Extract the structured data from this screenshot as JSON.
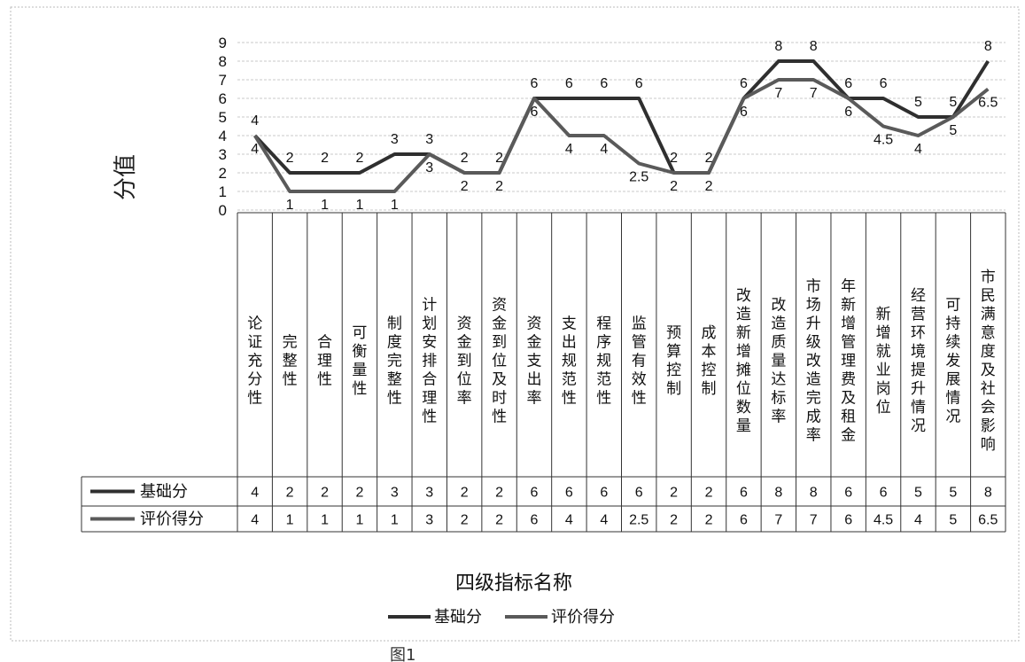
{
  "chart_data": {
    "type": "line",
    "ylabel": "分值",
    "xlabel": "四级指标名称",
    "ylim": [
      0,
      9
    ],
    "yticks": [
      "0",
      "1",
      "2",
      "3",
      "4",
      "5",
      "6",
      "7",
      "8",
      "9"
    ],
    "grid": true,
    "categories": [
      "论证充分性",
      "完整性",
      "合理性",
      "可衡量性",
      "制度完整性",
      "计划安排合理性",
      "资金到位率",
      "资金到位及时性",
      "资金支出率",
      "支出规范性",
      "程序规范性",
      "监管有效性",
      "预算控制",
      "成本控制",
      "改造新增摊位数量",
      "改造质量达标率",
      "市场升级改造完成率",
      "年新增管理费及租金",
      "新增就业岗位",
      "经营环境提升情况",
      "可持续发展情况",
      "市民满意度及社会影响"
    ],
    "series": [
      {
        "name": "基础分",
        "color": "#2f2f2f",
        "values": [
          4,
          2,
          2,
          2,
          3,
          3,
          2,
          2,
          6,
          6,
          6,
          6,
          2,
          2,
          6,
          8,
          8,
          6,
          6,
          5,
          5,
          8
        ],
        "labels": [
          "4",
          "2",
          "2",
          "2",
          "3",
          "3",
          "2",
          "2",
          "6",
          "6",
          "6",
          "6",
          "2",
          "2",
          "6",
          "8",
          "8",
          "6",
          "6",
          "5",
          "5",
          "8"
        ]
      },
      {
        "name": "评价得分",
        "color": "#5a5a5a",
        "values": [
          4,
          1,
          1,
          1,
          1,
          3,
          2,
          2,
          6,
          4,
          4,
          2.5,
          2,
          2,
          6,
          7,
          7,
          6,
          4.5,
          4,
          5,
          6.5
        ],
        "labels": [
          "4",
          "1",
          "1",
          "1",
          "1",
          "3",
          "2",
          "2",
          "6",
          "4",
          "4",
          "2.5",
          "2",
          "2",
          "6",
          "7",
          "7",
          "6",
          "4.5",
          "4",
          "5",
          "6.5"
        ]
      }
    ],
    "legend_position": "bottom",
    "caption": "图1"
  }
}
